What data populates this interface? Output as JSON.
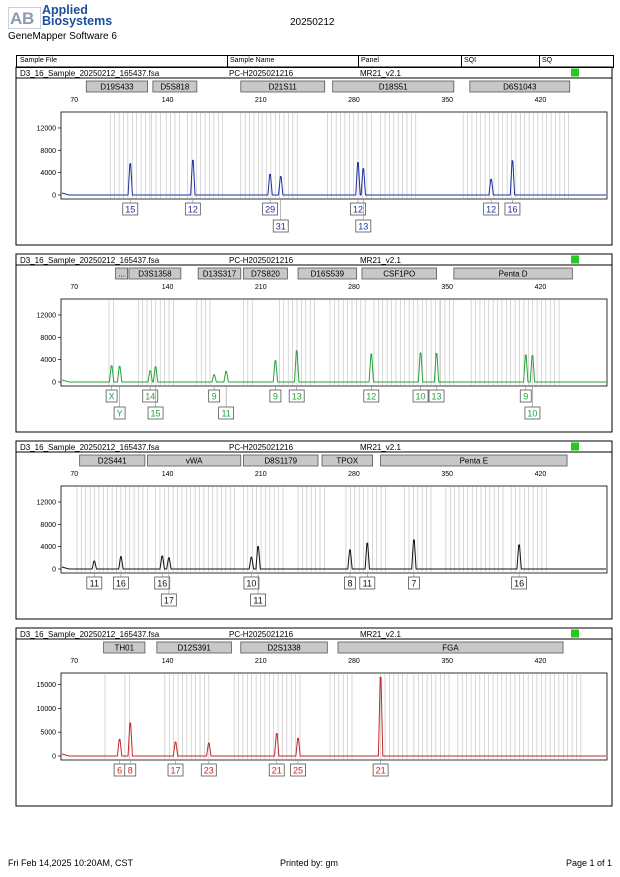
{
  "header": {
    "brand_line1": "Applied",
    "brand_line2": "Biosystems",
    "software": "GeneMapper Software 6",
    "date_title": "20250212",
    "columns": [
      "Sample File",
      "Sample Name",
      "Panel",
      "SQI",
      "SQ"
    ]
  },
  "footer": {
    "left": "Fri Feb 14,2025 10:20AM, CST",
    "center": "Printed by: gm",
    "right": "Page 1 of 1"
  },
  "chart_data": [
    {
      "type": "line",
      "sample_file": "D3_16_Sample_20250212_165437.fsa",
      "sample_name": "PC-H2025021216",
      "panel": "MR21_v2.1",
      "color": "#1c2fa0",
      "x_ticks": [
        70,
        140,
        210,
        280,
        350,
        420
      ],
      "y_ticks": [
        0,
        4000,
        8000,
        12000
      ],
      "xlim": [
        60,
        470
      ],
      "ylim": [
        0,
        14500
      ],
      "markers": [
        {
          "name": "D19S433",
          "start": 79,
          "end": 125
        },
        {
          "name": "D5S818",
          "start": 129,
          "end": 162
        },
        {
          "name": "D21S11",
          "start": 195,
          "end": 258
        },
        {
          "name": "D18S51",
          "start": 264,
          "end": 355
        },
        {
          "name": "D6S1043",
          "start": 367,
          "end": 442
        }
      ],
      "bins": [
        [
          97,
          127
        ],
        [
          128,
          137
        ],
        [
          139,
          152
        ],
        [
          155,
          184
        ],
        [
          195,
          209
        ],
        [
          211,
          240
        ],
        [
          260,
          296
        ],
        [
          300,
          328
        ],
        [
          362,
          444
        ]
      ],
      "peaks": [
        {
          "x": 112,
          "height": 5600,
          "allele": "15",
          "row": 1
        },
        {
          "x": 159,
          "height": 6200,
          "allele": "12",
          "row": 1
        },
        {
          "x": 217,
          "height": 3700,
          "allele": "29",
          "row": 1
        },
        {
          "x": 225,
          "height": 3300,
          "allele": "31",
          "row": 2
        },
        {
          "x": 283,
          "height": 5800,
          "allele": "12",
          "row": 1
        },
        {
          "x": 287,
          "height": 4700,
          "allele": "13",
          "row": 2
        },
        {
          "x": 383,
          "height": 2800,
          "allele": "12",
          "row": 1
        },
        {
          "x": 399,
          "height": 6100,
          "allele": "16",
          "row": 1
        }
      ]
    },
    {
      "type": "line",
      "sample_file": "D3_16_Sample_20250212_165437.fsa",
      "sample_name": "PC-H2025021216",
      "panel": "MR21_v2.1",
      "color": "#28a23a",
      "x_ticks": [
        70,
        140,
        210,
        280,
        350,
        420
      ],
      "y_ticks": [
        0,
        4000,
        8000,
        12000
      ],
      "xlim": [
        60,
        470
      ],
      "ylim": [
        0,
        14500
      ],
      "markers": [
        {
          "name": "...",
          "start": 101,
          "end": 110
        },
        {
          "name": "D3S1358",
          "start": 111,
          "end": 150
        },
        {
          "name": "D13S317",
          "start": 163,
          "end": 195
        },
        {
          "name": "D7S820",
          "start": 197,
          "end": 230
        },
        {
          "name": "D16S539",
          "start": 238,
          "end": 282
        },
        {
          "name": "CSF1PO",
          "start": 286,
          "end": 342
        },
        {
          "name": "Penta D",
          "start": 355,
          "end": 444
        }
      ],
      "bins": [
        [
          96,
          102
        ],
        [
          118,
          145
        ],
        [
          162,
          175
        ],
        [
          197,
          206
        ],
        [
          224,
          251
        ],
        [
          262,
          290
        ],
        [
          295,
          345
        ],
        [
          345,
          355
        ],
        [
          368,
          435
        ]
      ],
      "peaks": [
        {
          "x": 98,
          "height": 2900,
          "allele": "X",
          "row": 1
        },
        {
          "x": 104,
          "height": 2800,
          "allele": "Y",
          "row": 2
        },
        {
          "x": 127,
          "height": 2000,
          "allele": "14",
          "row": 1
        },
        {
          "x": 131,
          "height": 2700,
          "allele": "15",
          "row": 2
        },
        {
          "x": 175,
          "height": 1300,
          "allele": "9",
          "row": 1
        },
        {
          "x": 184,
          "height": 1900,
          "allele": "11",
          "row": 2
        },
        {
          "x": 221,
          "height": 3800,
          "allele": "9",
          "row": 1
        },
        {
          "x": 237,
          "height": 5600,
          "allele": "13",
          "row": 1
        },
        {
          "x": 293,
          "height": 5000,
          "allele": "12",
          "row": 1
        },
        {
          "x": 330,
          "height": 5200,
          "allele": "10",
          "row": 1
        },
        {
          "x": 342,
          "height": 5100,
          "allele": "13",
          "row": 1
        },
        {
          "x": 409,
          "height": 4800,
          "allele": "9",
          "row": 1
        },
        {
          "x": 414,
          "height": 4700,
          "allele": "10",
          "row": 2
        }
      ]
    },
    {
      "type": "line",
      "sample_file": "D3_16_Sample_20250212_165437.fsa",
      "sample_name": "PC-H2025021216",
      "panel": "MR21_v2.1",
      "color": "#111111",
      "x_ticks": [
        70,
        140,
        210,
        280,
        350,
        420
      ],
      "y_ticks": [
        0,
        4000,
        8000,
        12000
      ],
      "xlim": [
        60,
        470
      ],
      "ylim": [
        0,
        14500
      ],
      "markers": [
        {
          "name": "D2S441",
          "start": 74,
          "end": 123
        },
        {
          "name": "vWA",
          "start": 125,
          "end": 195
        },
        {
          "name": "D8S1179",
          "start": 197,
          "end": 253
        },
        {
          "name": "TPOX",
          "start": 256,
          "end": 294
        },
        {
          "name": "Penta E",
          "start": 300,
          "end": 440
        }
      ],
      "bins": [
        [
          72,
          126
        ],
        [
          131,
          192
        ],
        [
          197,
          230
        ],
        [
          238,
          258
        ],
        [
          274,
          307
        ],
        [
          318,
          340
        ],
        [
          349,
          392
        ],
        [
          398,
          425
        ]
      ],
      "peaks": [
        {
          "x": 85,
          "height": 1400,
          "allele": "11",
          "row": 1
        },
        {
          "x": 105,
          "height": 2200,
          "allele": "16",
          "row": 1
        },
        {
          "x": 136,
          "height": 2300,
          "allele": "16",
          "row": 1
        },
        {
          "x": 141,
          "height": 2000,
          "allele": "17",
          "row": 2
        },
        {
          "x": 203,
          "height": 2100,
          "allele": "10",
          "row": 1
        },
        {
          "x": 208,
          "height": 4000,
          "allele": "11",
          "row": 2
        },
        {
          "x": 277,
          "height": 3400,
          "allele": "8",
          "row": 1
        },
        {
          "x": 290,
          "height": 4600,
          "allele": "11",
          "row": 1
        },
        {
          "x": 325,
          "height": 5200,
          "allele": "7",
          "row": 1
        },
        {
          "x": 404,
          "height": 4300,
          "allele": "16",
          "row": 1
        }
      ]
    },
    {
      "type": "line",
      "sample_file": "D3_16_Sample_20250212_165437.fsa",
      "sample_name": "PC-H2025021216",
      "panel": "MR21_v2.1",
      "color": "#c0282c",
      "x_ticks": [
        70,
        140,
        210,
        280,
        350,
        420
      ],
      "y_ticks": [
        0,
        5000,
        10000,
        15000
      ],
      "xlim": [
        60,
        470
      ],
      "ylim": [
        0,
        17000
      ],
      "markers": [
        {
          "name": "TH01",
          "start": 92,
          "end": 123
        },
        {
          "name": "D12S391",
          "start": 132,
          "end": 188
        },
        {
          "name": "D2S1338",
          "start": 195,
          "end": 260
        },
        {
          "name": "FGA",
          "start": 268,
          "end": 437
        }
      ],
      "bins": [
        [
          93,
          96
        ],
        [
          108,
          113
        ],
        [
          138,
          172
        ],
        [
          190,
          240
        ],
        [
          262,
          280
        ],
        [
          300,
          323
        ],
        [
          325,
          354
        ],
        [
          358,
          452
        ]
      ],
      "peaks": [
        {
          "x": 104,
          "height": 3500,
          "allele": "6",
          "row": 1
        },
        {
          "x": 112,
          "height": 6900,
          "allele": "8",
          "row": 1
        },
        {
          "x": 146,
          "height": 2900,
          "allele": "17",
          "row": 1
        },
        {
          "x": 171,
          "height": 2700,
          "allele": "23",
          "row": 1
        },
        {
          "x": 222,
          "height": 4700,
          "allele": "21",
          "row": 1
        },
        {
          "x": 238,
          "height": 3700,
          "allele": "25",
          "row": 1
        },
        {
          "x": 300,
          "height": 16500,
          "allele": "21",
          "row": 1
        }
      ]
    }
  ]
}
